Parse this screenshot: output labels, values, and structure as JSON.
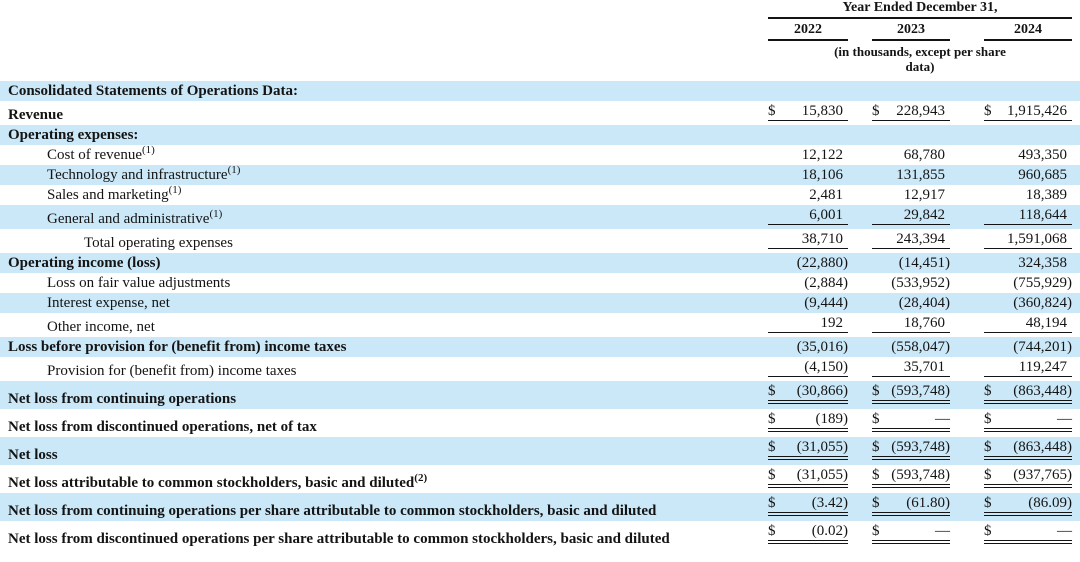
{
  "colors": {
    "row_shade": "#cbe8f8",
    "text": "#141414",
    "rule": "#141414"
  },
  "table": {
    "currency_symbol": "$",
    "header": {
      "period_label": "Year Ended December 31,",
      "years": [
        "2022",
        "2023",
        "2024"
      ],
      "units_note": "(in thousands, except per share data)"
    },
    "rows": [
      {
        "label": "Consolidated Statements of Operations Data:",
        "bold": true,
        "indent": 0,
        "shade": true,
        "dollar": false,
        "values": [
          "",
          "",
          ""
        ],
        "line": "none"
      },
      {
        "label": "Revenue",
        "bold": true,
        "indent": 0,
        "shade": false,
        "dollar": true,
        "values": [
          "15,830",
          "228,943",
          "1,915,426"
        ],
        "line": "single"
      },
      {
        "label": "Operating expenses:",
        "bold": true,
        "indent": 0,
        "shade": true,
        "dollar": false,
        "values": [
          "",
          "",
          ""
        ],
        "line": "none"
      },
      {
        "label": "Cost of revenue",
        "sup": "(1)",
        "bold": false,
        "indent": 1,
        "shade": false,
        "dollar": false,
        "values": [
          "12,122",
          "68,780",
          "493,350"
        ],
        "line": "none"
      },
      {
        "label": "Technology and infrastructure",
        "sup": "(1)",
        "bold": false,
        "indent": 1,
        "shade": true,
        "dollar": false,
        "values": [
          "18,106",
          "131,855",
          "960,685"
        ],
        "line": "none"
      },
      {
        "label": "Sales and marketing",
        "sup": "(1)",
        "bold": false,
        "indent": 1,
        "shade": false,
        "dollar": false,
        "values": [
          "2,481",
          "12,917",
          "18,389"
        ],
        "line": "none"
      },
      {
        "label": "General and administrative",
        "sup": "(1)",
        "bold": false,
        "indent": 1,
        "shade": true,
        "dollar": false,
        "values": [
          "6,001",
          "29,842",
          "118,644"
        ],
        "line": "single"
      },
      {
        "label": "Total operating expenses",
        "bold": false,
        "indent": 2,
        "shade": false,
        "dollar": false,
        "values": [
          "38,710",
          "243,394",
          "1,591,068"
        ],
        "line": "single"
      },
      {
        "label": "Operating income (loss)",
        "bold": true,
        "indent": 0,
        "shade": true,
        "dollar": false,
        "values": [
          "(22,880)",
          "(14,451)",
          "324,358"
        ],
        "line": "none"
      },
      {
        "label": "Loss on fair value adjustments",
        "bold": false,
        "indent": 1,
        "shade": false,
        "dollar": false,
        "values": [
          "(2,884)",
          "(533,952)",
          "(755,929)"
        ],
        "line": "none"
      },
      {
        "label": "Interest expense, net",
        "bold": false,
        "indent": 1,
        "shade": true,
        "dollar": false,
        "values": [
          "(9,444)",
          "(28,404)",
          "(360,824)"
        ],
        "line": "none"
      },
      {
        "label": "Other income, net",
        "bold": false,
        "indent": 1,
        "shade": false,
        "dollar": false,
        "values": [
          "192",
          "18,760",
          "48,194"
        ],
        "line": "single"
      },
      {
        "label": "Loss before provision for (benefit from) income taxes",
        "bold": true,
        "indent": 0,
        "shade": true,
        "dollar": false,
        "values": [
          "(35,016)",
          "(558,047)",
          "(744,201)"
        ],
        "line": "none"
      },
      {
        "label": "Provision for (benefit from) income taxes",
        "bold": false,
        "indent": 1,
        "shade": false,
        "dollar": false,
        "values": [
          "(4,150)",
          "35,701",
          "119,247"
        ],
        "line": "single"
      },
      {
        "label": "Net loss from continuing operations",
        "bold": true,
        "indent": 0,
        "shade": true,
        "dollar": true,
        "values": [
          "(30,866)",
          "(593,748)",
          "(863,448)"
        ],
        "line": "double"
      },
      {
        "label": "Net loss from discontinued operations, net of tax",
        "bold": true,
        "indent": 0,
        "shade": false,
        "dollar": true,
        "values": [
          "(189)",
          "—",
          "—"
        ],
        "line": "double"
      },
      {
        "label": "Net loss",
        "bold": true,
        "indent": 0,
        "shade": true,
        "dollar": true,
        "values": [
          "(31,055)",
          "(593,748)",
          "(863,448)"
        ],
        "line": "double"
      },
      {
        "label": "Net loss attributable to common stockholders, basic and diluted",
        "sup": "(2)",
        "bold": true,
        "indent": 0,
        "shade": false,
        "dollar": true,
        "values": [
          "(31,055)",
          "(593,748)",
          "(937,765)"
        ],
        "line": "double"
      },
      {
        "label": "Net loss from continuing operations per share attributable to common stockholders, basic and diluted",
        "bold": true,
        "indent": 0,
        "shade": true,
        "dollar": true,
        "wrap": true,
        "values": [
          "(3.42)",
          "(61.80)",
          "(86.09)"
        ],
        "line": "double"
      },
      {
        "label": "Net loss from discontinued operations per share attributable to common stockholders, basic and diluted",
        "bold": true,
        "indent": 0,
        "shade": false,
        "dollar": true,
        "wrap": true,
        "values": [
          "(0.02)",
          "—",
          "—"
        ],
        "line": "double"
      }
    ]
  }
}
